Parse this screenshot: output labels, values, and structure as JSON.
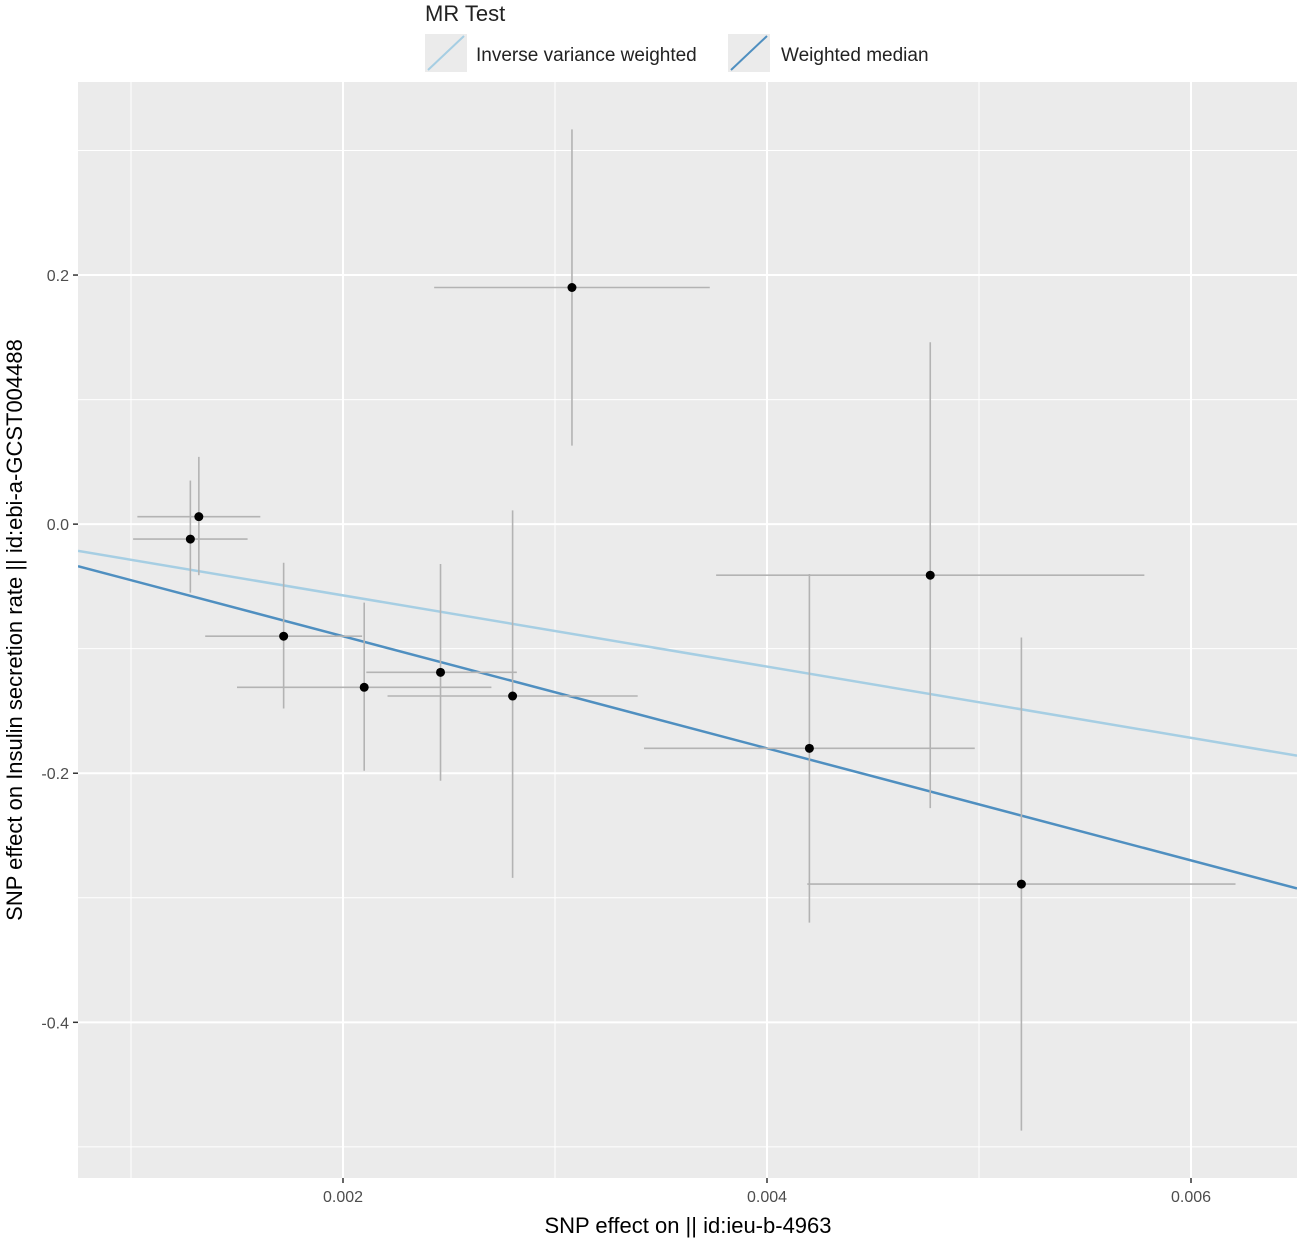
{
  "chart_data": {
    "type": "scatter",
    "legend": {
      "title": "MR Test",
      "placement": "top",
      "entries": [
        {
          "label": "Inverse variance weighted",
          "color": "#a6cee3"
        },
        {
          "label": "Weighted median",
          "color": "#4f8fc0"
        }
      ]
    },
    "xlabel": "SNP effect on  || id:ieu-b-4963",
    "ylabel": "SNP effect on Insulin secretion rate || id:ebi-a-GCST004488",
    "xlim": [
      0.00075,
      0.0065
    ],
    "ylim": [
      -0.525,
      0.355
    ],
    "xticks": [
      0.002,
      0.004,
      0.006
    ],
    "xtick_labels": [
      "0.002",
      "0.004",
      "0.006"
    ],
    "yticks": [
      -0.4,
      -0.2,
      0.0,
      0.2
    ],
    "ytick_labels": [
      "-0.4",
      "-0.2",
      "0.0",
      "0.2"
    ],
    "grid": true,
    "points": [
      {
        "x": 0.00132,
        "y": 0.006,
        "xlo": 0.00103,
        "xhi": 0.00161,
        "ylo": -0.041,
        "yhi": 0.054
      },
      {
        "x": 0.00128,
        "y": -0.012,
        "xlo": 0.00101,
        "xhi": 0.00155,
        "ylo": -0.055,
        "yhi": 0.035
      },
      {
        "x": 0.00172,
        "y": -0.09,
        "xlo": 0.00135,
        "xhi": 0.00209,
        "ylo": -0.148,
        "yhi": -0.031
      },
      {
        "x": 0.0021,
        "y": -0.131,
        "xlo": 0.0015,
        "xhi": 0.0027,
        "ylo": -0.198,
        "yhi": -0.063
      },
      {
        "x": 0.00246,
        "y": -0.119,
        "xlo": 0.00211,
        "xhi": 0.00282,
        "ylo": -0.206,
        "yhi": -0.032
      },
      {
        "x": 0.0028,
        "y": -0.138,
        "xlo": 0.00221,
        "xhi": 0.00339,
        "ylo": -0.284,
        "yhi": 0.011
      },
      {
        "x": 0.00308,
        "y": 0.19,
        "xlo": 0.00243,
        "xhi": 0.00373,
        "ylo": 0.063,
        "yhi": 0.317
      },
      {
        "x": 0.0042,
        "y": -0.18,
        "xlo": 0.00342,
        "xhi": 0.00498,
        "ylo": -0.32,
        "yhi": -0.04
      },
      {
        "x": 0.00477,
        "y": -0.041,
        "xlo": 0.00376,
        "xhi": 0.00578,
        "ylo": -0.228,
        "yhi": 0.146
      },
      {
        "x": 0.0052,
        "y": -0.289,
        "xlo": 0.00419,
        "xhi": 0.00621,
        "ylo": -0.487,
        "yhi": -0.091
      }
    ],
    "lines": [
      {
        "name": "Inverse variance weighted",
        "intercept": 0.0,
        "slope": -28.6,
        "color": "#a6cee3"
      },
      {
        "name": "Weighted median",
        "intercept": 0.0,
        "slope": -45.0,
        "color": "#4f8fc0"
      }
    ]
  }
}
